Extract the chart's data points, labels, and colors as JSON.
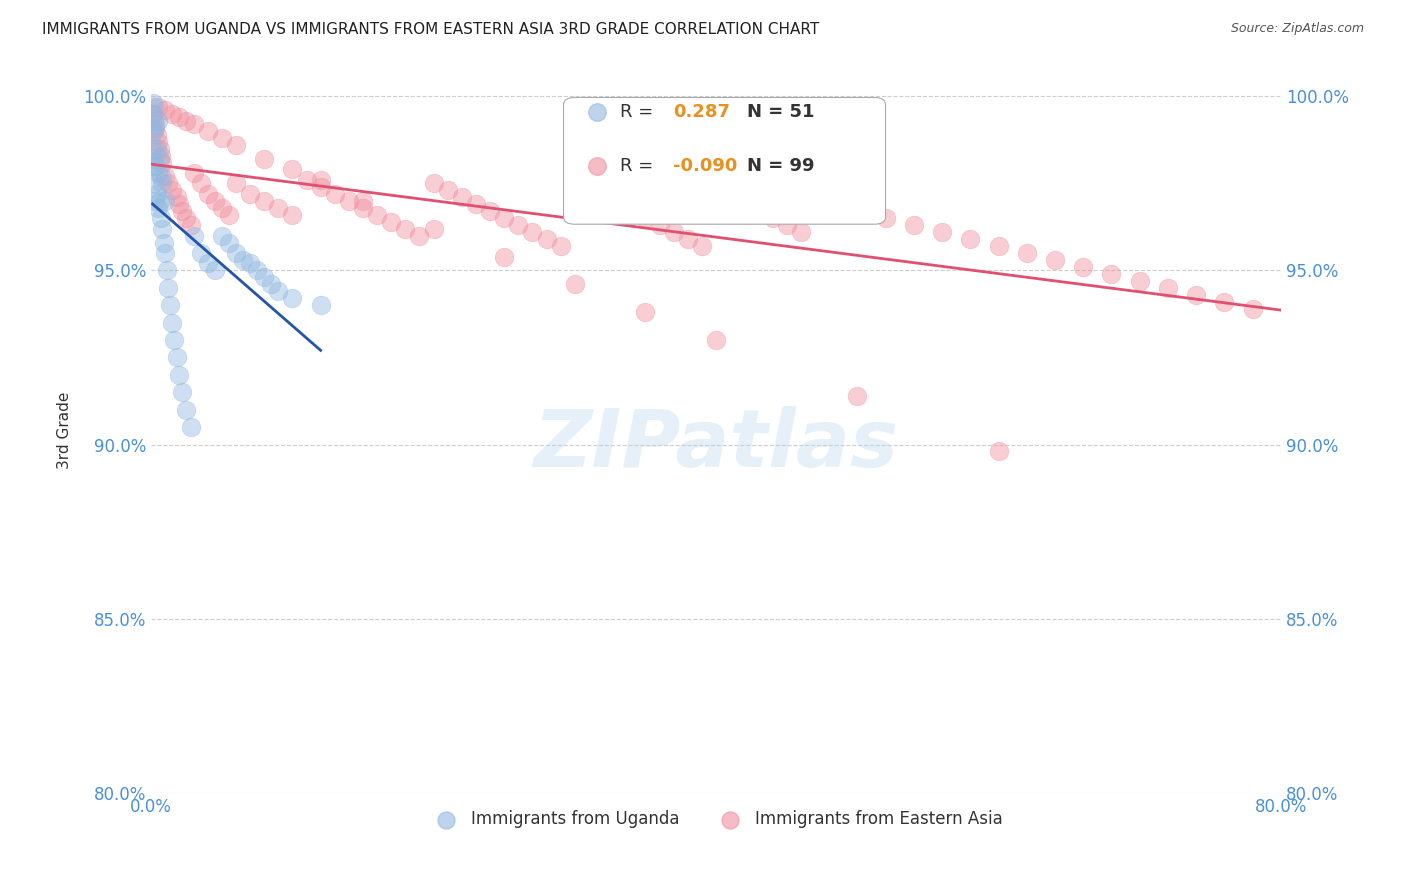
{
  "title": "IMMIGRANTS FROM UGANDA VS IMMIGRANTS FROM EASTERN ASIA 3RD GRADE CORRELATION CHART",
  "source": "Source: ZipAtlas.com",
  "ylabel": "3rd Grade",
  "x_min": 0.0,
  "x_max": 0.8,
  "y_min": 0.868,
  "y_max": 1.008,
  "x_ticks": [
    0.0,
    0.1,
    0.2,
    0.3,
    0.4,
    0.5,
    0.6,
    0.7,
    0.8
  ],
  "y_ticks": [
    0.8,
    0.85,
    0.9,
    0.95,
    1.0
  ],
  "y_tick_labels": [
    "80.0%",
    "85.0%",
    "90.0%",
    "95.0%",
    "100.0%"
  ],
  "R_uganda": 0.287,
  "N_uganda": 51,
  "R_eastern_asia": -0.09,
  "N_eastern_asia": 99,
  "uganda_color": "#92b8e0",
  "eastern_asia_color": "#f090a0",
  "trendline_uganda_color": "#2255aa",
  "trendline_eastern_asia_color": "#e05070",
  "watermark": "ZIPatlas",
  "background_color": "#ffffff",
  "grid_color": "#c8c8c8",
  "axis_label_color": "#4a90d9",
  "title_color": "#222222",
  "uganda_scatter_x": [
    0.001,
    0.001,
    0.001,
    0.001,
    0.001,
    0.002,
    0.002,
    0.002,
    0.002,
    0.003,
    0.003,
    0.003,
    0.004,
    0.004,
    0.005,
    0.005,
    0.005,
    0.006,
    0.006,
    0.007,
    0.007,
    0.008,
    0.008,
    0.009,
    0.01,
    0.01,
    0.011,
    0.012,
    0.013,
    0.015,
    0.016,
    0.018,
    0.02,
    0.022,
    0.025,
    0.028,
    0.03,
    0.035,
    0.04,
    0.045,
    0.05,
    0.055,
    0.06,
    0.065,
    0.07,
    0.075,
    0.08,
    0.085,
    0.09,
    0.1,
    0.12
  ],
  "uganda_scatter_y": [
    0.98,
    0.985,
    0.99,
    0.995,
    0.998,
    0.975,
    0.982,
    0.99,
    0.997,
    0.97,
    0.98,
    0.992,
    0.972,
    0.985,
    0.968,
    0.978,
    0.993,
    0.97,
    0.982,
    0.965,
    0.977,
    0.962,
    0.975,
    0.958,
    0.955,
    0.97,
    0.95,
    0.945,
    0.94,
    0.935,
    0.93,
    0.925,
    0.92,
    0.915,
    0.91,
    0.905,
    0.96,
    0.955,
    0.952,
    0.95,
    0.96,
    0.958,
    0.955,
    0.953,
    0.952,
    0.95,
    0.948,
    0.946,
    0.944,
    0.942,
    0.94
  ],
  "eastern_asia_scatter_x": [
    0.001,
    0.002,
    0.003,
    0.004,
    0.005,
    0.006,
    0.007,
    0.008,
    0.01,
    0.012,
    0.015,
    0.018,
    0.02,
    0.022,
    0.025,
    0.028,
    0.03,
    0.035,
    0.04,
    0.045,
    0.05,
    0.055,
    0.06,
    0.07,
    0.08,
    0.09,
    0.1,
    0.11,
    0.12,
    0.13,
    0.14,
    0.15,
    0.16,
    0.17,
    0.18,
    0.19,
    0.2,
    0.21,
    0.22,
    0.23,
    0.24,
    0.25,
    0.26,
    0.27,
    0.28,
    0.29,
    0.3,
    0.31,
    0.32,
    0.33,
    0.34,
    0.35,
    0.36,
    0.37,
    0.38,
    0.39,
    0.4,
    0.41,
    0.42,
    0.43,
    0.44,
    0.45,
    0.46,
    0.48,
    0.5,
    0.52,
    0.54,
    0.56,
    0.58,
    0.6,
    0.62,
    0.64,
    0.66,
    0.68,
    0.7,
    0.72,
    0.74,
    0.76,
    0.78,
    0.005,
    0.01,
    0.015,
    0.02,
    0.025,
    0.03,
    0.04,
    0.05,
    0.06,
    0.08,
    0.1,
    0.12,
    0.15,
    0.2,
    0.25,
    0.3,
    0.35,
    0.4,
    0.5,
    0.6
  ],
  "eastern_asia_scatter_y": [
    0.995,
    0.993,
    0.991,
    0.989,
    0.987,
    0.985,
    0.983,
    0.981,
    0.977,
    0.975,
    0.973,
    0.971,
    0.969,
    0.967,
    0.965,
    0.963,
    0.978,
    0.975,
    0.972,
    0.97,
    0.968,
    0.966,
    0.975,
    0.972,
    0.97,
    0.968,
    0.966,
    0.976,
    0.974,
    0.972,
    0.97,
    0.968,
    0.966,
    0.964,
    0.962,
    0.96,
    0.975,
    0.973,
    0.971,
    0.969,
    0.967,
    0.965,
    0.963,
    0.961,
    0.959,
    0.957,
    0.975,
    0.973,
    0.971,
    0.969,
    0.967,
    0.965,
    0.963,
    0.961,
    0.959,
    0.957,
    0.973,
    0.971,
    0.969,
    0.967,
    0.965,
    0.963,
    0.961,
    0.969,
    0.967,
    0.965,
    0.963,
    0.961,
    0.959,
    0.957,
    0.955,
    0.953,
    0.951,
    0.949,
    0.947,
    0.945,
    0.943,
    0.941,
    0.939,
    0.997,
    0.996,
    0.995,
    0.994,
    0.993,
    0.992,
    0.99,
    0.988,
    0.986,
    0.982,
    0.979,
    0.976,
    0.97,
    0.962,
    0.954,
    0.946,
    0.938,
    0.93,
    0.914,
    0.898
  ]
}
